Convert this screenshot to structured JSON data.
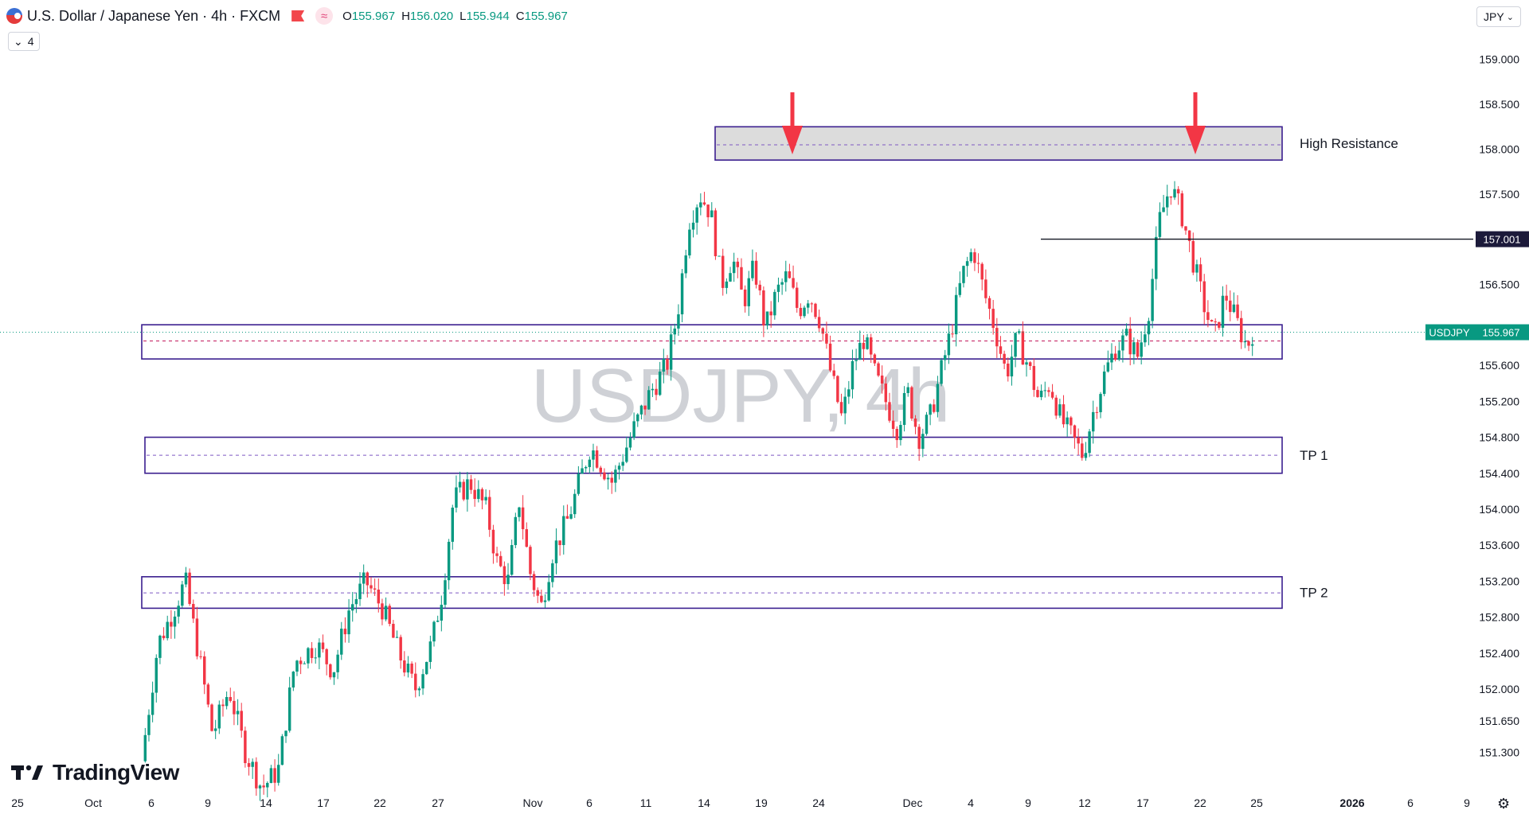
{
  "header": {
    "title": "U.S. Dollar / Japanese Yen · 4h · FXCM",
    "ohlc": [
      {
        "label": "O",
        "value": "155.967"
      },
      {
        "label": "H",
        "value": "156.020"
      },
      {
        "label": "L",
        "value": "155.944"
      },
      {
        "label": "C",
        "value": "155.967"
      }
    ],
    "indicator_count": "4",
    "currency": "JPY"
  },
  "watermark": "USDJPY, 4h",
  "logo_text": "TradingView",
  "icons": {
    "flag": "us-japan-flag-icon",
    "marker": "flag-marker-icon",
    "wave": "wave-icon",
    "chevron": "chevron-down-icon",
    "settings": "settings-icon"
  },
  "colors": {
    "up": "#089981",
    "down": "#f23645",
    "zone_border": "#3b1f8f",
    "zone_fill_high": "#dcdcdc",
    "zone_dash": "#7e57c2",
    "arrow": "#f23645",
    "level_label_bg": "#1c1a3a",
    "price_label_bg": "#089981"
  },
  "chart_data": {
    "type": "candlestick",
    "symbol": "USDJPY",
    "timeframe": "4h",
    "y_ticks": [
      159.0,
      158.5,
      158.0,
      157.5,
      156.5,
      155.6,
      155.2,
      154.8,
      154.4,
      154.0,
      153.6,
      153.2,
      152.8,
      152.4,
      152.0,
      151.65,
      151.3
    ],
    "x_ticks": [
      "25",
      "Oct",
      "6",
      "9",
      "14",
      "17",
      "22",
      "27",
      "Nov",
      "6",
      "11",
      "14",
      "19",
      "24",
      "Dec",
      "4",
      "9",
      "12",
      "17",
      "22",
      "25",
      "2026",
      "6",
      "9"
    ],
    "zones": [
      {
        "label": "High Resistance",
        "top": 158.25,
        "bottom": 157.88,
        "mid": 158.05
      },
      {
        "label": "",
        "top": 156.05,
        "bottom": 155.67,
        "mid": 155.87
      },
      {
        "label": "TP 1",
        "top": 154.8,
        "bottom": 154.4,
        "mid": 154.6
      },
      {
        "label": "TP 2",
        "top": 153.25,
        "bottom": 152.9,
        "mid": 153.07
      }
    ],
    "horizontal_line": {
      "value": 157.001,
      "label": "157.001"
    },
    "current_price": {
      "symbol": "USDJPY",
      "value": "155.967"
    },
    "arrows": [
      {
        "x_label": "22",
        "near": "first peak"
      },
      {
        "x_label": "22",
        "near": "second peak"
      }
    ],
    "path": [
      [
        0,
        151.2
      ],
      [
        3,
        152.5
      ],
      [
        6,
        152.9
      ],
      [
        8,
        153.2
      ],
      [
        11,
        152.2
      ],
      [
        13,
        151.5
      ],
      [
        16,
        152.0
      ],
      [
        19,
        151.3
      ],
      [
        22,
        150.9
      ],
      [
        25,
        151.1
      ],
      [
        28,
        152.3
      ],
      [
        32,
        152.5
      ],
      [
        35,
        152.2
      ],
      [
        38,
        152.9
      ],
      [
        41,
        153.2
      ],
      [
        44,
        152.9
      ],
      [
        47,
        152.4
      ],
      [
        50,
        152.0
      ],
      [
        53,
        152.5
      ],
      [
        55,
        153.1
      ],
      [
        57,
        154.1
      ],
      [
        60,
        154.3
      ],
      [
        63,
        154.0
      ],
      [
        65,
        153.4
      ],
      [
        67,
        153.2
      ],
      [
        69,
        154.1
      ],
      [
        71,
        153.3
      ],
      [
        73,
        152.9
      ],
      [
        75,
        153.5
      ],
      [
        78,
        153.9
      ],
      [
        80,
        154.3
      ],
      [
        82,
        154.7
      ],
      [
        84,
        154.5
      ],
      [
        86,
        154.3
      ],
      [
        88,
        154.6
      ],
      [
        90,
        154.9
      ],
      [
        93,
        155.3
      ],
      [
        96,
        155.6
      ],
      [
        98,
        156.2
      ],
      [
        100,
        157.2
      ],
      [
        102,
        157.5
      ],
      [
        104,
        157.3
      ],
      [
        106,
        156.5
      ],
      [
        108,
        156.8
      ],
      [
        110,
        156.3
      ],
      [
        112,
        156.7
      ],
      [
        114,
        156.0
      ],
      [
        116,
        156.4
      ],
      [
        118,
        156.6
      ],
      [
        120,
        156.2
      ],
      [
        122,
        156.4
      ],
      [
        124,
        156.1
      ],
      [
        126,
        155.5
      ],
      [
        128,
        155.0
      ],
      [
        130,
        155.6
      ],
      [
        132,
        155.9
      ],
      [
        134,
        155.5
      ],
      [
        136,
        155.2
      ],
      [
        138,
        154.9
      ],
      [
        140,
        155.3
      ],
      [
        142,
        154.8
      ],
      [
        144,
        155.0
      ],
      [
        146,
        155.5
      ],
      [
        148,
        156.0
      ],
      [
        150,
        156.6
      ],
      [
        152,
        156.9
      ],
      [
        154,
        156.4
      ],
      [
        156,
        156.0
      ],
      [
        158,
        155.5
      ],
      [
        160,
        155.9
      ],
      [
        162,
        155.6
      ],
      [
        164,
        155.2
      ],
      [
        166,
        155.4
      ],
      [
        168,
        155.0
      ],
      [
        170,
        154.8
      ],
      [
        172,
        154.6
      ],
      [
        174,
        155.1
      ],
      [
        176,
        155.5
      ],
      [
        178,
        155.8
      ],
      [
        180,
        155.9
      ],
      [
        182,
        155.7
      ],
      [
        184,
        156.2
      ],
      [
        186,
        157.2
      ],
      [
        188,
        157.6
      ],
      [
        190,
        157.3
      ],
      [
        192,
        156.8
      ],
      [
        194,
        156.3
      ],
      [
        196,
        155.9
      ],
      [
        198,
        156.4
      ],
      [
        200,
        156.1
      ],
      [
        202,
        155.8
      ],
      [
        203,
        155.97
      ]
    ]
  }
}
